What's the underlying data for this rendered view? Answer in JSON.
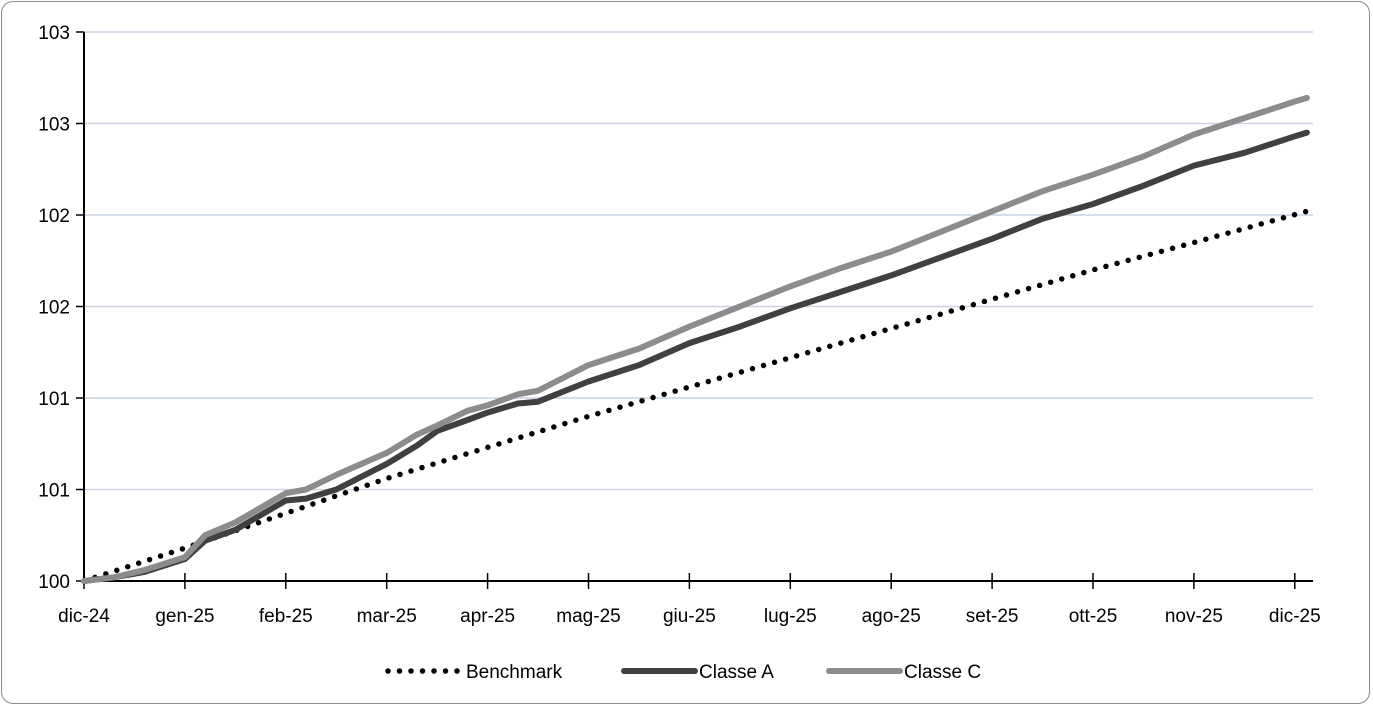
{
  "chart_data": {
    "type": "line",
    "title": "",
    "xlabel": "",
    "ylabel": "",
    "x_tick_labels": [
      "dic-24",
      "gen-25",
      "feb-25",
      "mar-25",
      "apr-25",
      "mag-25",
      "giu-25",
      "lug-25",
      "ago-25",
      "set-25",
      "ott-25",
      "nov-25",
      "dic-25"
    ],
    "y_tick_values": [
      100,
      100.5,
      101,
      101.5,
      102,
      102.5,
      103
    ],
    "y_tick_labels": [
      "100",
      "101",
      "101",
      "102",
      "102",
      "103",
      "103"
    ],
    "ylim": [
      100,
      103
    ],
    "grid": true,
    "legend_position": "bottom",
    "series": [
      {
        "name": "Benchmark",
        "style": "dotted",
        "color": "#000000",
        "x": [
          0,
          1,
          2,
          3,
          4,
          5,
          6,
          7,
          8,
          9,
          10,
          11,
          12.12
        ],
        "values": [
          100.0,
          100.18,
          100.37,
          100.56,
          100.73,
          100.9,
          101.06,
          101.22,
          101.38,
          101.54,
          101.7,
          101.85,
          102.02
        ]
      },
      {
        "name": "Classe A",
        "style": "solid",
        "color": "#404040",
        "x": [
          0,
          0.3,
          0.6,
          1,
          1.2,
          1.5,
          2,
          2.2,
          2.5,
          3,
          3.3,
          3.5,
          3.8,
          4,
          4.3,
          4.5,
          5,
          5.5,
          6,
          6.5,
          7,
          7.5,
          8,
          8.5,
          9,
          9.5,
          10,
          10.5,
          11,
          11.5,
          12,
          12.12
        ],
        "values": [
          100.0,
          100.02,
          100.05,
          100.12,
          100.22,
          100.28,
          100.44,
          100.45,
          100.5,
          100.64,
          100.74,
          100.82,
          100.88,
          100.92,
          100.97,
          100.98,
          101.09,
          101.18,
          101.3,
          101.39,
          101.49,
          101.58,
          101.67,
          101.77,
          101.87,
          101.98,
          102.06,
          102.16,
          102.27,
          102.34,
          102.43,
          102.45
        ]
      },
      {
        "name": "Classe C",
        "style": "solid",
        "color": "#8c8c8c",
        "x": [
          0,
          0.3,
          0.6,
          1,
          1.2,
          1.5,
          2,
          2.2,
          2.5,
          3,
          3.3,
          3.5,
          3.8,
          4,
          4.3,
          4.5,
          5,
          5.5,
          6,
          6.5,
          7,
          7.5,
          8,
          8.5,
          9,
          9.5,
          10,
          10.5,
          11,
          11.5,
          12,
          12.12
        ],
        "values": [
          100.0,
          100.02,
          100.06,
          100.13,
          100.25,
          100.32,
          100.48,
          100.5,
          100.58,
          100.7,
          100.8,
          100.85,
          100.93,
          100.96,
          101.02,
          101.04,
          101.18,
          101.27,
          101.39,
          101.5,
          101.61,
          101.71,
          101.8,
          101.91,
          102.02,
          102.13,
          102.22,
          102.32,
          102.44,
          102.53,
          102.62,
          102.64
        ]
      }
    ]
  }
}
